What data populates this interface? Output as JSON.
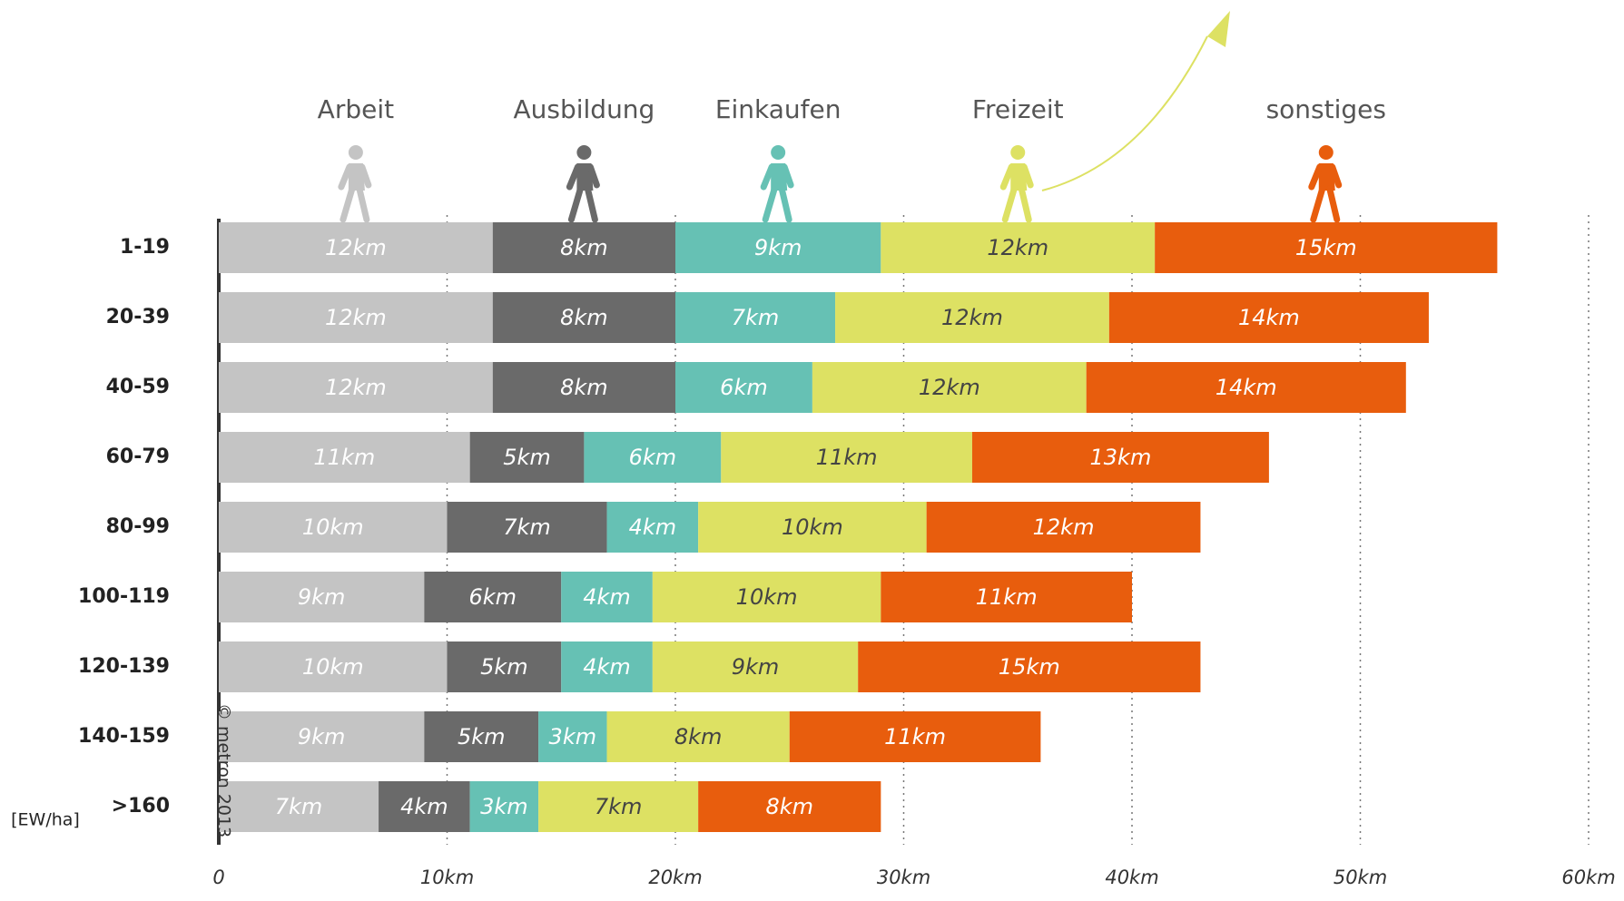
{
  "chart_data": {
    "type": "stacked-bar-horizontal",
    "y_label": "[EW/ha]",
    "annotation": "© metron 2013",
    "categories": [
      "1-19",
      "20-39",
      "40-59",
      "60-79",
      "80-99",
      "100-119",
      "120-139",
      "140-159",
      ">160"
    ],
    "series": [
      {
        "name": "Arbeit",
        "color": "#c4c4c4",
        "values": [
          12,
          12,
          12,
          11,
          10,
          9,
          10,
          9,
          7
        ],
        "value_labels": [
          "12km",
          "12km",
          "12km",
          "11km",
          "10km",
          "9km",
          "10km",
          "9km",
          "7km"
        ]
      },
      {
        "name": "Ausbildung",
        "color": "#6a6a6a",
        "values": [
          8,
          8,
          8,
          5,
          7,
          6,
          5,
          5,
          4
        ],
        "value_labels": [
          "8km",
          "8km",
          "8km",
          "5km",
          "7km",
          "6km",
          "5km",
          "5km",
          "4km"
        ]
      },
      {
        "name": "Einkaufen",
        "color": "#66c1b4",
        "values": [
          9,
          7,
          6,
          6,
          4,
          4,
          4,
          3,
          3
        ],
        "value_labels": [
          "9km",
          "7km",
          "6km",
          "6km",
          "4km",
          "4km",
          "4km",
          "3km",
          "3km"
        ]
      },
      {
        "name": "Freizeit",
        "color": "#dde163",
        "values": [
          12,
          12,
          12,
          11,
          10,
          10,
          9,
          8,
          7
        ],
        "value_labels": [
          "12km",
          "12km",
          "12km",
          "11km",
          "10km",
          "10km",
          "9km",
          "8km",
          "7km"
        ]
      },
      {
        "name": "sonstiges",
        "color": "#e85d0d",
        "values": [
          15,
          14,
          14,
          13,
          12,
          11,
          15,
          11,
          8
        ],
        "value_labels": [
          "15km",
          "14km",
          "14km",
          "13km",
          "12km",
          "11km",
          "15km",
          "11km",
          "8km"
        ]
      }
    ],
    "xlim": [
      0,
      60
    ],
    "xticks": [
      0,
      {
        "value": 10,
        "label": "10km"
      },
      {
        "value": 20,
        "label": "20km"
      },
      {
        "value": 30,
        "label": "30km"
      },
      {
        "value": 40,
        "label": "40km"
      },
      {
        "value": 50,
        "label": "50km"
      },
      {
        "value": 60,
        "label": "60km"
      }
    ],
    "grid": true
  }
}
